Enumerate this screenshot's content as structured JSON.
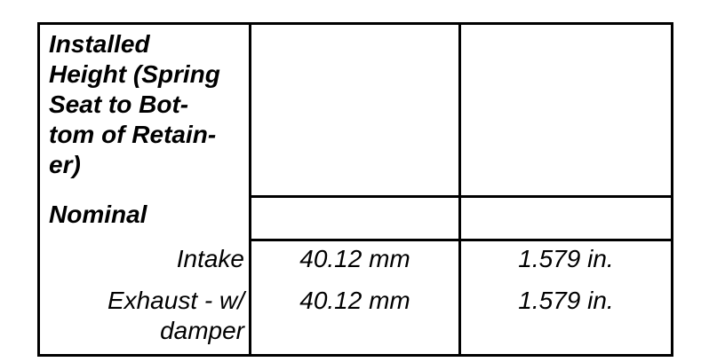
{
  "colors": {
    "border": "#000000",
    "text": "#000000",
    "bg": "#ffffff"
  },
  "table": {
    "header": {
      "title_lines": [
        "Installed",
        "Height (Spring",
        "Seat to Bot-",
        "tom of Retain-",
        "er)"
      ],
      "title_full": "Installed Height (Spring Seat to Bottom of Retainer)",
      "subtitle": "Nominal"
    },
    "rows": [
      {
        "label_lines": [
          "Intake"
        ],
        "metric": "40.12 mm",
        "imperial": "1.579 in."
      },
      {
        "label_lines": [
          "Exhaust - w/",
          "damper"
        ],
        "metric": "40.12 mm",
        "imperial": "1.579 in."
      }
    ]
  }
}
